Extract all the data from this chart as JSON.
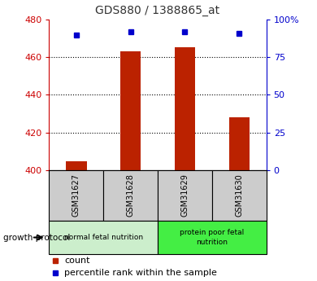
{
  "title": "GDS880 / 1388865_at",
  "samples": [
    "GSM31627",
    "GSM31628",
    "GSM31629",
    "GSM31630"
  ],
  "count_values": [
    404.5,
    463.0,
    465.5,
    428.0
  ],
  "percentile_values": [
    90,
    92,
    92,
    91
  ],
  "ylim_left": [
    400,
    480
  ],
  "ylim_right": [
    0,
    100
  ],
  "yticks_left": [
    400,
    420,
    440,
    460,
    480
  ],
  "yticks_right": [
    0,
    25,
    50,
    75,
    100
  ],
  "yticklabels_right": [
    "0",
    "25",
    "50",
    "75",
    "100%"
  ],
  "bar_color": "#bb2200",
  "marker_color": "#0000cc",
  "groups": [
    {
      "label": "normal fetal nutrition",
      "samples": [
        0,
        1
      ],
      "color": "#cceecc"
    },
    {
      "label": "protein poor fetal\nnutrition",
      "samples": [
        2,
        3
      ],
      "color": "#44ee44"
    }
  ],
  "group_label": "growth protocol",
  "legend_count_label": "count",
  "legend_percentile_label": "percentile rank within the sample",
  "title_color": "#333333",
  "left_axis_color": "#cc0000",
  "right_axis_color": "#0000cc",
  "sample_box_color": "#cccccc",
  "grid_color": "#000000"
}
